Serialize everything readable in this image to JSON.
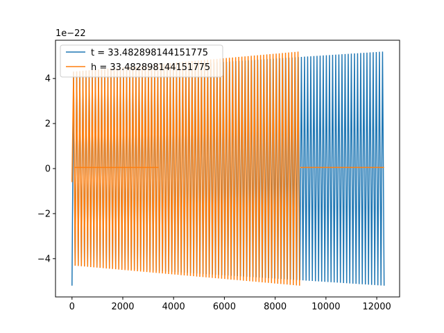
{
  "chart_data": {
    "type": "line",
    "title": "",
    "xlabel": "",
    "ylabel": "",
    "y_offset_label": "1e−22",
    "xlim": [
      -650,
      12900
    ],
    "ylim": [
      -5.7,
      5.7
    ],
    "xticks": [
      0,
      2000,
      4000,
      6000,
      8000,
      10000,
      12000
    ],
    "xtick_labels": [
      "0",
      "2000",
      "4000",
      "6000",
      "8000",
      "10000",
      "12000"
    ],
    "yticks": [
      -4,
      -2,
      0,
      2,
      4
    ],
    "ytick_labels": [
      "−4",
      "−2",
      "0",
      "2",
      "4"
    ],
    "grid": false,
    "legend": {
      "placement": "top-left"
    },
    "series": [
      {
        "name": "t = 33.482898144151775",
        "color": "#1f77b4",
        "signal": {
          "x_start": 0,
          "x_end": 12290,
          "cycles": 100,
          "amp_start": 4.3,
          "amp_end": 5.2,
          "initial_peak": -5.2,
          "zero_segments": []
        }
      },
      {
        "name": "h = 33.482898144151775",
        "color": "#ff7f0e",
        "signal": {
          "x_start": 0,
          "x_end": 8960,
          "cycles": 73,
          "amp_start": 4.3,
          "amp_end": 5.2,
          "initial_peak": -0.6,
          "zero_segments": [
            {
              "from": 80,
              "to": 3420,
              "value": 0.05
            },
            {
              "from": 8980,
              "to": 12290,
              "value": 0.05
            }
          ]
        }
      }
    ]
  }
}
